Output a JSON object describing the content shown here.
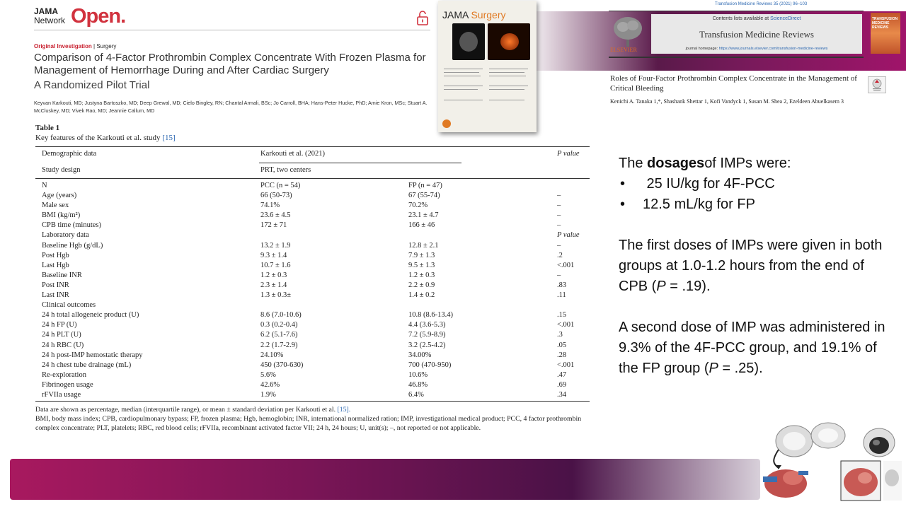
{
  "jama_article": {
    "brand_jama": "JAMA",
    "brand_network": "Network",
    "brand_open": "Open.",
    "article_type": "Original Investigation",
    "article_section": "Surgery",
    "title": "Comparison of 4-Factor Prothrombin Complex Concentrate With Frozen Plasma for Management of Hemorrhage During and After Cardiac Surgery",
    "subtitle": "A Randomized Pilot Trial",
    "authors": "Keyvan Karkouti, MD; Justyna Bartoszko, MD; Deep Grewal, MD; Cielo Bingley, RN; Chantal Armali, BSc; Jo Carroll, BHA; Hans-Peter Hucke, PhD; Amie Kron, MSc; Stuart A. McCluskey, MD; Vivek Rao, MD; Jeannie Callum, MD"
  },
  "jama_surgery_cover": {
    "title_jama": "JAMA",
    "title_surgery": "Surgery"
  },
  "tmr_article": {
    "citation": "Transfusion Medicine Reviews 35 (2021) 96–103",
    "contents_prefix": "Contents lists available at",
    "contents_link": "ScienceDirect",
    "journal": "Transfusion Medicine Reviews",
    "homepage_prefix": "journal homepage:",
    "homepage_url": "https://www.journals.elsevier.com/transfusion-medicine-reviews",
    "publisher": "ELSEVIER",
    "cover_text": "TRANSFUSION MEDICINE REVIEWS",
    "title": "Roles of Four-Factor Prothrombin Complex Concentrate in the Management of Critical Bleeding",
    "authors": "Kenichi A. Tanaka 1,*, Shashank Shettar 1, Kofi Vandyck 1, Susan M. Shea 2, Ezeldeen Abuelkasem 3"
  },
  "table": {
    "caption": "Table 1",
    "subcaption": "Key features of the Karkouti et al. study",
    "subcaption_ref": "[15]",
    "header": {
      "col0": "Demographic data",
      "col1": "Karkouti et al. (2021)",
      "col3": "P value",
      "study_design_label": "Study design",
      "study_design_value": "PRT, two centers"
    },
    "rows": [
      {
        "c0": "N",
        "c1": "PCC (n = 54)",
        "c2": "FP (n = 47)",
        "c3": ""
      },
      {
        "c0": "Age (years)",
        "c1": "66 (50-73)",
        "c2": "67 (55-74)",
        "c3": "–"
      },
      {
        "c0": "Male sex",
        "c1": "74.1%",
        "c2": "70.2%",
        "c3": "–"
      },
      {
        "c0": "BMI (kg/m²)",
        "c1": "23.6 ± 4.5",
        "c2": "23.1 ± 4.7",
        "c3": "–"
      },
      {
        "c0": "CPB time (minutes)",
        "c1": "172 ± 71",
        "c2": "166 ± 46",
        "c3": "–"
      },
      {
        "c0": "Laboratory data",
        "c1": "",
        "c2": "",
        "c3": "P value",
        "c3_italic": true
      },
      {
        "c0": "Baseline Hgb (g/dL)",
        "c1": "13.2 ± 1.9",
        "c2": "12.8 ± 2.1",
        "c3": "–"
      },
      {
        "c0": "Post Hgb",
        "c1": "9.3 ± 1.4",
        "c2": "7.9 ± 1.3",
        "c3": ".2"
      },
      {
        "c0": "Last Hgb",
        "c1": "10.7 ± 1.6",
        "c2": "9.5 ± 1.3",
        "c3": "<.001"
      },
      {
        "c0": "Baseline INR",
        "c1": "1.2 ± 0.3",
        "c2": "1.2 ± 0.3",
        "c3": "–"
      },
      {
        "c0": "Post INR",
        "c1": "2.3 ± 1.4",
        "c2": "2.2 ± 0.9",
        "c3": ".83"
      },
      {
        "c0": "Last INR",
        "c1": "1.3 ± 0.3±",
        "c2": "1.4 ± 0.2",
        "c3": ".11"
      },
      {
        "c0": "Clinical outcomes",
        "c1": "",
        "c2": "",
        "c3": ""
      },
      {
        "c0": "24 h total allogeneic product (U)",
        "c1": "8.6 (7.0-10.6)",
        "c2": "10.8 (8.6-13.4)",
        "c3": ".15"
      },
      {
        "c0": "24 h FP (U)",
        "c1": "0.3 (0.2-0.4)",
        "c2": "4.4 (3.6-5.3)",
        "c3": "<.001"
      },
      {
        "c0": "24 h PLT (U)",
        "c1": "6.2 (5.1-7.6)",
        "c2": "7.2 (5.9-8.9)",
        "c3": ".3"
      },
      {
        "c0": "24 h RBC (U)",
        "c1": "2.2 (1.7-2.9)",
        "c2": "3.2 (2.5-4.2)",
        "c3": ".05"
      },
      {
        "c0": "24 h post-IMP hemostatic therapy",
        "c1": "24.10%",
        "c2": "34.00%",
        "c3": ".28"
      },
      {
        "c0": "24 h chest tube drainage (mL)",
        "c1": "450 (370-630)",
        "c2": "700 (470-950)",
        "c3": "<.001"
      },
      {
        "c0": "Re-exploration",
        "c1": "5.6%",
        "c2": "10.6%",
        "c3": ".47"
      },
      {
        "c0": "Fibrinogen usage",
        "c1": "42.6%",
        "c2": "46.8%",
        "c3": ".69"
      },
      {
        "c0": "rFVIIa usage",
        "c1": "1.9%",
        "c2": "6.4%",
        "c3": ".34"
      }
    ],
    "footnote_line1": "Data are shown as percentage, median (interquartile range), or mean ± standard deviation per Karkouti et al.",
    "footnote_ref": "[15].",
    "footnote_abbrev": "BMI, body mass index; CPB, cardiopulmonary bypass; FP, frozen plasma; Hgb, hemoglobin; INR, international normalized ration; IMP, investigational medical product; PCC, 4 factor prothrombin complex concentrate; PLT, platelets; RBC, red blood cells; rFVIIa, recombinant activated factor VII; 24 h, 24 hours; U, unit(s); –, not reported or not applicable."
  },
  "notes": {
    "dosage_intro_pre": "The",
    "dosage_intro_bold": "dosages",
    "dosage_intro_post": "of IMPs were:",
    "bullet_symbol": "•",
    "bullet1": " 25 IU/kg for 4F-PCC",
    "bullet2": "12.5 mL/kg for FP",
    "para2_pre": "The first doses of IMPs were given in both groups at 1.0-1.2 hours from the end of CPB (",
    "para2_p": "P",
    "para2_post": " = .19).",
    "para3_pre": "A second dose of IMP was administered in 9.3% of the 4F-PCC group, and 19.1% of the FP group (",
    "para3_p": "P",
    "para3_post": " = .25)."
  }
}
